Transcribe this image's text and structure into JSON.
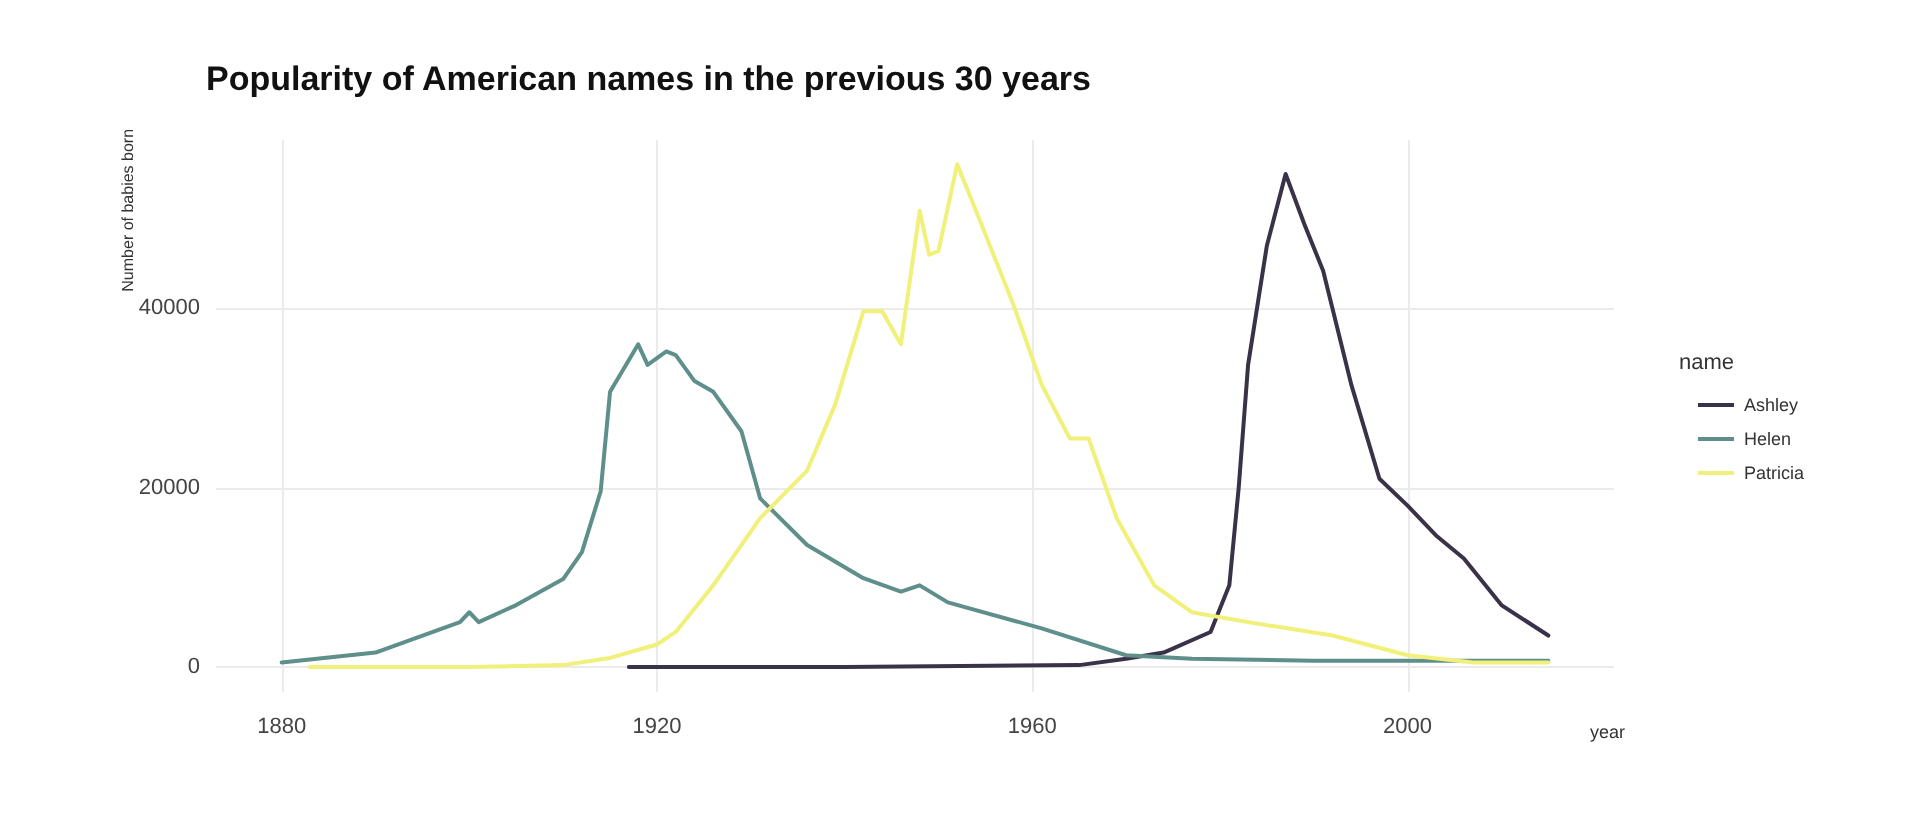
{
  "chart_data": {
    "type": "line",
    "title": "Popularity of American names in the previous 30 years",
    "xlabel": "year",
    "ylabel": "Number of babies born",
    "legend_title": "name",
    "xlim": [
      1873,
      2022
    ],
    "xticks": [
      1880,
      1920,
      1960,
      2000
    ],
    "ylim": [
      -2800,
      58800
    ],
    "yticks": [
      0,
      20000,
      40000
    ],
    "grid": true,
    "legend": "right",
    "marker": "none",
    "line_style": "solid",
    "series": [
      {
        "name": "Ashley",
        "color": "#3a3248",
        "x": [
          1917,
          1940,
          1965,
          1970,
          1974,
          1979,
          1981,
          1982,
          1983,
          1985,
          1987,
          1989,
          1991,
          1994,
          1997,
          2000,
          2003,
          2006,
          2010,
          2015
        ],
        "values": [
          0,
          0,
          200,
          900,
          1600,
          3900,
          9100,
          20000,
          33700,
          47000,
          55000,
          49400,
          44200,
          31500,
          21000,
          18000,
          14700,
          12100,
          6900,
          3500
        ]
      },
      {
        "name": "Helen",
        "color": "#5f8f8a",
        "x": [
          1880,
          1890,
          1899,
          1900,
          1901,
          1905,
          1910,
          1912,
          1914,
          1915,
          1918,
          1919,
          1921,
          1922,
          1924,
          1926,
          1929,
          1931,
          1936,
          1942,
          1946,
          1948,
          1951,
          1961,
          1970,
          1977,
          1990,
          2015
        ],
        "values": [
          500,
          1600,
          5000,
          6100,
          5000,
          6900,
          9800,
          12800,
          19600,
          30700,
          36000,
          33700,
          35200,
          34800,
          31900,
          30700,
          26300,
          18800,
          13600,
          9900,
          8400,
          9100,
          7200,
          4300,
          1300,
          900,
          700,
          700
        ]
      },
      {
        "name": "Patricia",
        "color": "#f0f07a",
        "x": [
          1883,
          1900,
          1910,
          1915,
          1920,
          1922,
          1926,
          1931,
          1936,
          1939,
          1942,
          1944,
          1946,
          1948,
          1949,
          1950,
          1952,
          1954,
          1958,
          1961,
          1964,
          1966,
          1969,
          1973,
          1977,
          1983,
          1992,
          2000,
          2007,
          2015
        ],
        "values": [
          0,
          0,
          200,
          1000,
          2500,
          3900,
          9100,
          16600,
          21900,
          29300,
          39700,
          39700,
          36000,
          50900,
          46000,
          46400,
          56100,
          50900,
          40400,
          31500,
          25500,
          25500,
          16600,
          9100,
          6100,
          5000,
          3500,
          1300,
          500,
          500
        ]
      }
    ]
  }
}
